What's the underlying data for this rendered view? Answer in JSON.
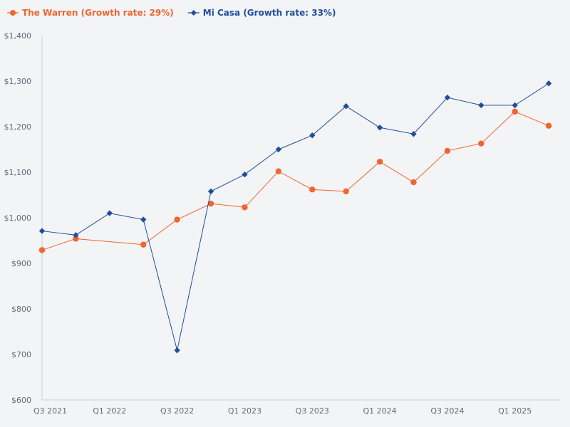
{
  "chart_data": {
    "type": "line",
    "title": "",
    "xlabel": "",
    "ylabel": "",
    "ylim": [
      600,
      1400
    ],
    "yticks": [
      600,
      700,
      800,
      900,
      1000,
      1100,
      1200,
      1300,
      1400
    ],
    "ytick_labels": [
      "$600",
      "$700",
      "$800",
      "$900",
      "$1,000",
      "$1,100",
      "$1,200",
      "$1,300",
      "$1,400"
    ],
    "x_labels": [
      "Q3 2021",
      "Q1 2022",
      "Q3 2022",
      "Q1 2023",
      "Q3 2023",
      "Q1 2024",
      "Q3 2024",
      "Q1 2025"
    ],
    "x_label_indices": [
      0,
      4,
      8,
      12,
      16,
      20,
      24,
      28
    ],
    "x_range": [
      0,
      30.67
    ],
    "legend_position": "top-left",
    "grid": false,
    "series": [
      {
        "name": "The Warren (Growth rate: 29%)",
        "color": "#f26430",
        "marker": "circle",
        "x": [
          0,
          2,
          6,
          8,
          10,
          12,
          14,
          16,
          18,
          20,
          22,
          24,
          26,
          28,
          30
        ],
        "values": [
          929,
          954,
          941,
          996,
          1031,
          1023,
          1102,
          1062,
          1058,
          1123,
          1078,
          1147,
          1163,
          1233,
          1202
        ]
      },
      {
        "name": "Mi Casa (Growth rate: 33%)",
        "color": "#1f4e9c",
        "marker": "diamond",
        "x": [
          0,
          2,
          4,
          6,
          8,
          10,
          12,
          14,
          16,
          18,
          20,
          22,
          24,
          26,
          28,
          30
        ],
        "values": [
          971,
          962,
          1010,
          996,
          709,
          1058,
          1095,
          1150,
          1181,
          1245,
          1198,
          1184,
          1264,
          1247,
          1247,
          1295
        ]
      }
    ]
  }
}
